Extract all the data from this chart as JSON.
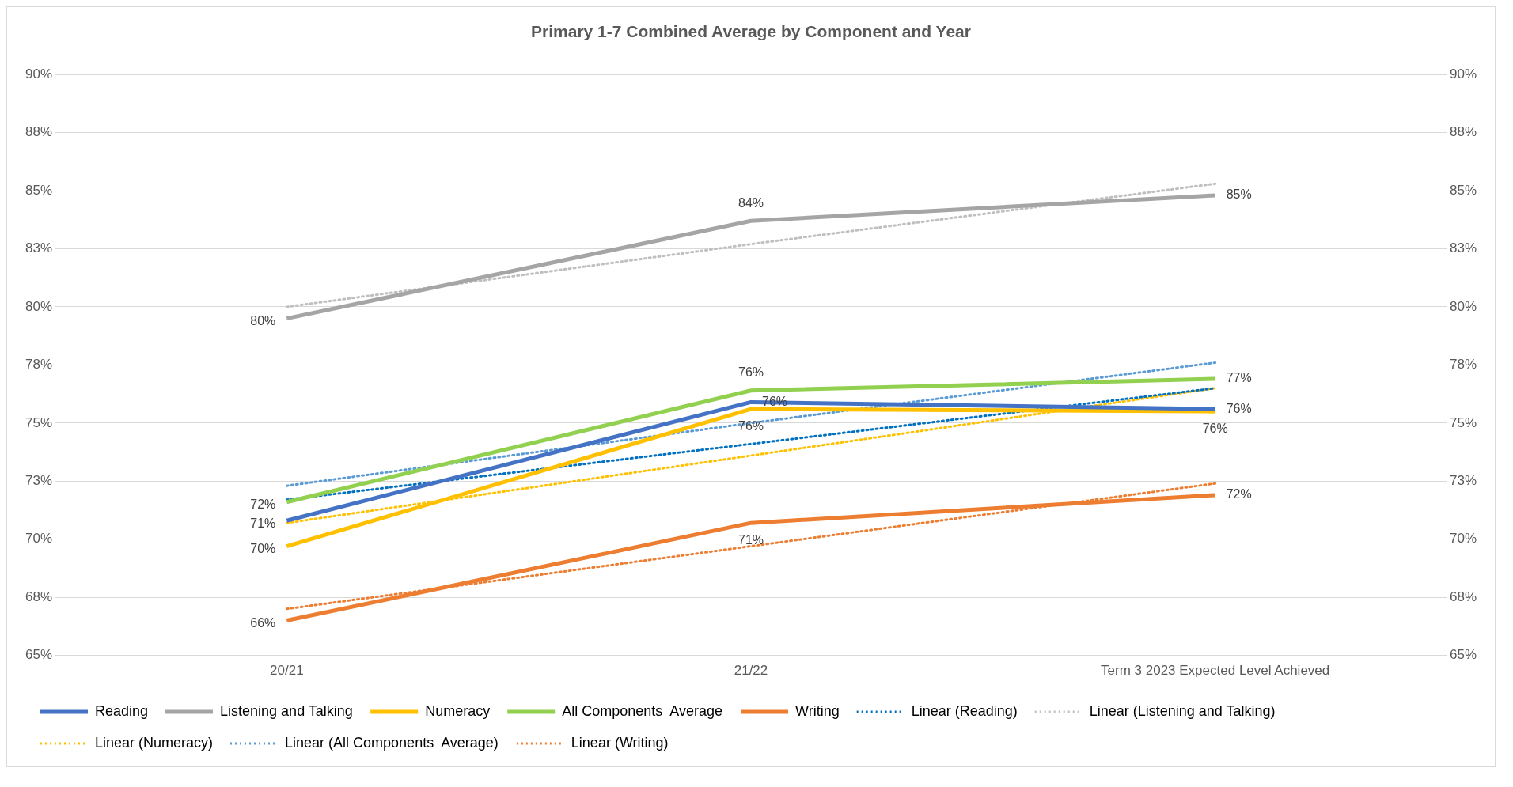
{
  "chart_data": {
    "type": "line",
    "title": "Primary 1-7 Combined Average by Component and Year",
    "categories": [
      "20/21",
      "21/22",
      "Term 3 2023 Expected Level Achieved"
    ],
    "ylim": [
      65,
      90
    ],
    "yticks": [
      {
        "value": 65,
        "label": "65%"
      },
      {
        "value": 67.5,
        "label": "68%"
      },
      {
        "value": 70,
        "label": "70%"
      },
      {
        "value": 72.5,
        "label": "73%"
      },
      {
        "value": 75,
        "label": "75%"
      },
      {
        "value": 77.5,
        "label": "78%"
      },
      {
        "value": 80,
        "label": "80%"
      },
      {
        "value": 82.5,
        "label": "83%"
      },
      {
        "value": 85,
        "label": "85%"
      },
      {
        "value": 87.5,
        "label": "88%"
      },
      {
        "value": 90,
        "label": "90%"
      }
    ],
    "y2lim": [
      65,
      90
    ],
    "y2ticks": [
      {
        "value": 65,
        "label": "65%"
      },
      {
        "value": 67.5,
        "label": "68%"
      },
      {
        "value": 70,
        "label": "70%"
      },
      {
        "value": 72.5,
        "label": "73%"
      },
      {
        "value": 75,
        "label": "75%"
      },
      {
        "value": 77.5,
        "label": "78%"
      },
      {
        "value": 80,
        "label": "80%"
      },
      {
        "value": 82.5,
        "label": "83%"
      },
      {
        "value": 85,
        "label": "85%"
      },
      {
        "value": 87.5,
        "label": "88%"
      },
      {
        "value": 90,
        "label": "90%"
      }
    ],
    "grid": "y",
    "legend": "bottom",
    "marker": "none",
    "series": [
      {
        "name": "Reading",
        "color": "#4472c4",
        "values": [
          70.8,
          75.9,
          75.6
        ],
        "value_labels": [
          "71%",
          "76%",
          "76%"
        ],
        "line_style": "solid"
      },
      {
        "name": "Listening and Talking",
        "color": "#a5a5a5",
        "values": [
          79.5,
          83.7,
          84.8
        ],
        "value_labels": [
          "80%",
          "84%",
          "85%"
        ],
        "line_style": "solid"
      },
      {
        "name": "Numeracy",
        "color": "#ffc000",
        "values": [
          69.7,
          75.6,
          75.5
        ],
        "value_labels": [
          "70%",
          "76%",
          "76%"
        ],
        "line_style": "solid"
      },
      {
        "name": "All Components  Average",
        "color": "#92d050",
        "values": [
          71.6,
          76.4,
          76.9
        ],
        "value_labels": [
          "72%",
          "76%",
          "77%"
        ],
        "line_style": "solid"
      },
      {
        "name": "Writing",
        "color": "#ed7d31",
        "values": [
          66.5,
          70.7,
          71.9
        ],
        "value_labels": [
          "66%",
          "71%",
          "72%"
        ],
        "line_style": "solid"
      },
      {
        "name": "Linear (Reading)",
        "color": "#0070c0",
        "values": [
          71.7,
          74.1,
          76.5
        ],
        "line_style": "dotted"
      },
      {
        "name": "Linear (Listening and Talking)",
        "color": "#bfbfbf",
        "values": [
          80.0,
          82.7,
          85.3
        ],
        "line_style": "dotted"
      },
      {
        "name": "Linear (Numeracy)",
        "color": "#ffc000",
        "values": [
          70.7,
          73.6,
          76.5
        ],
        "line_style": "dotted"
      },
      {
        "name": "Linear (All Components  Average)",
        "color": "#5b9bd5",
        "values": [
          72.3,
          75.0,
          77.6
        ],
        "line_style": "dotted"
      },
      {
        "name": "Linear (Writing)",
        "color": "#ed7d31",
        "values": [
          67.0,
          69.7,
          72.4
        ],
        "line_style": "dotted"
      }
    ]
  }
}
